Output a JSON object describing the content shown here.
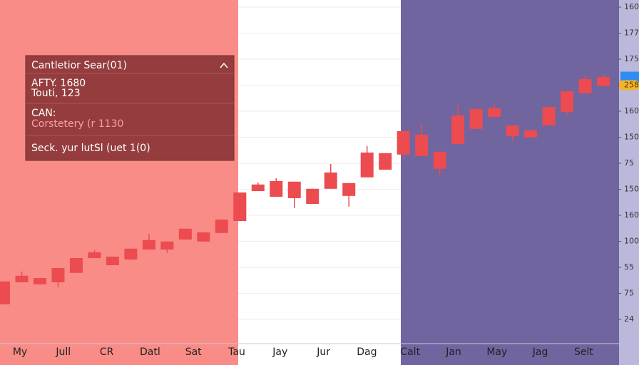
{
  "chart_data": {
    "type": "candlestick",
    "color": "#ec4b50",
    "ylim": [
      0,
      120
    ],
    "categories": [
      "My",
      "Jull",
      "CR",
      "Datl",
      "Sat",
      "Tau",
      "Jay",
      "Jur",
      "Dag",
      "Calt",
      "Jan",
      "May",
      "Jag",
      "Selt"
    ],
    "y_axis_labels": [
      "160",
      "177",
      "175",
      "258",
      "160",
      "150",
      "75",
      "150",
      "160",
      "100",
      "55",
      "75",
      "24"
    ],
    "price_label_index": 3,
    "open": [
      13.3,
      21,
      20.3,
      21,
      24.3,
      29.5,
      27,
      29,
      32.5,
      32.5,
      36,
      35.3,
      38.3,
      42.5,
      53,
      51,
      50.5,
      48.5,
      53.8,
      51.3,
      57.8,
      60.5,
      65.8,
      65.3,
      60.8,
      69.5,
      74.8,
      79,
      72.3,
      71.8,
      76,
      80.8,
      87.3,
      89.8
    ],
    "close": [
      21.3,
      23.3,
      22.5,
      26,
      29.5,
      31.5,
      30,
      32.8,
      35.8,
      35.3,
      39.8,
      38.5,
      43,
      52.5,
      55.3,
      56.5,
      56.3,
      53.8,
      59.5,
      55.8,
      66.5,
      66.3,
      74,
      72.8,
      66.8,
      79.5,
      81.8,
      82,
      76,
      74.3,
      82.5,
      88,
      92.3,
      93
    ],
    "high": [
      21.3,
      24.8,
      22.5,
      26,
      29.5,
      32.3,
      30,
      32.8,
      38,
      35.3,
      39.8,
      38.5,
      43,
      52.5,
      56,
      57.5,
      56.3,
      53.8,
      62.5,
      55.8,
      68.8,
      66.3,
      74,
      76.5,
      66.8,
      83,
      81.8,
      83.5,
      76,
      74.3,
      82.5,
      88,
      93.5,
      94
    ],
    "low": [
      13.3,
      21,
      20.3,
      19.3,
      24.3,
      29.5,
      27,
      29,
      32.5,
      31.3,
      36,
      35.3,
      38.3,
      42.5,
      53,
      51,
      47,
      48.5,
      53.8,
      47.5,
      57.8,
      60.5,
      64.5,
      65.3,
      58.5,
      69.5,
      74.8,
      79,
      70.5,
      71.8,
      76,
      79.5,
      87.3,
      89.8
    ]
  },
  "panel": {
    "title": "Cantletior Sear(01)",
    "lines": [
      "AFTY. 1680",
      "Touti, 123",
      "CAN:",
      "Corstetery (r 1130",
      "Seck. yur lutSl (uet 1(0)"
    ]
  }
}
